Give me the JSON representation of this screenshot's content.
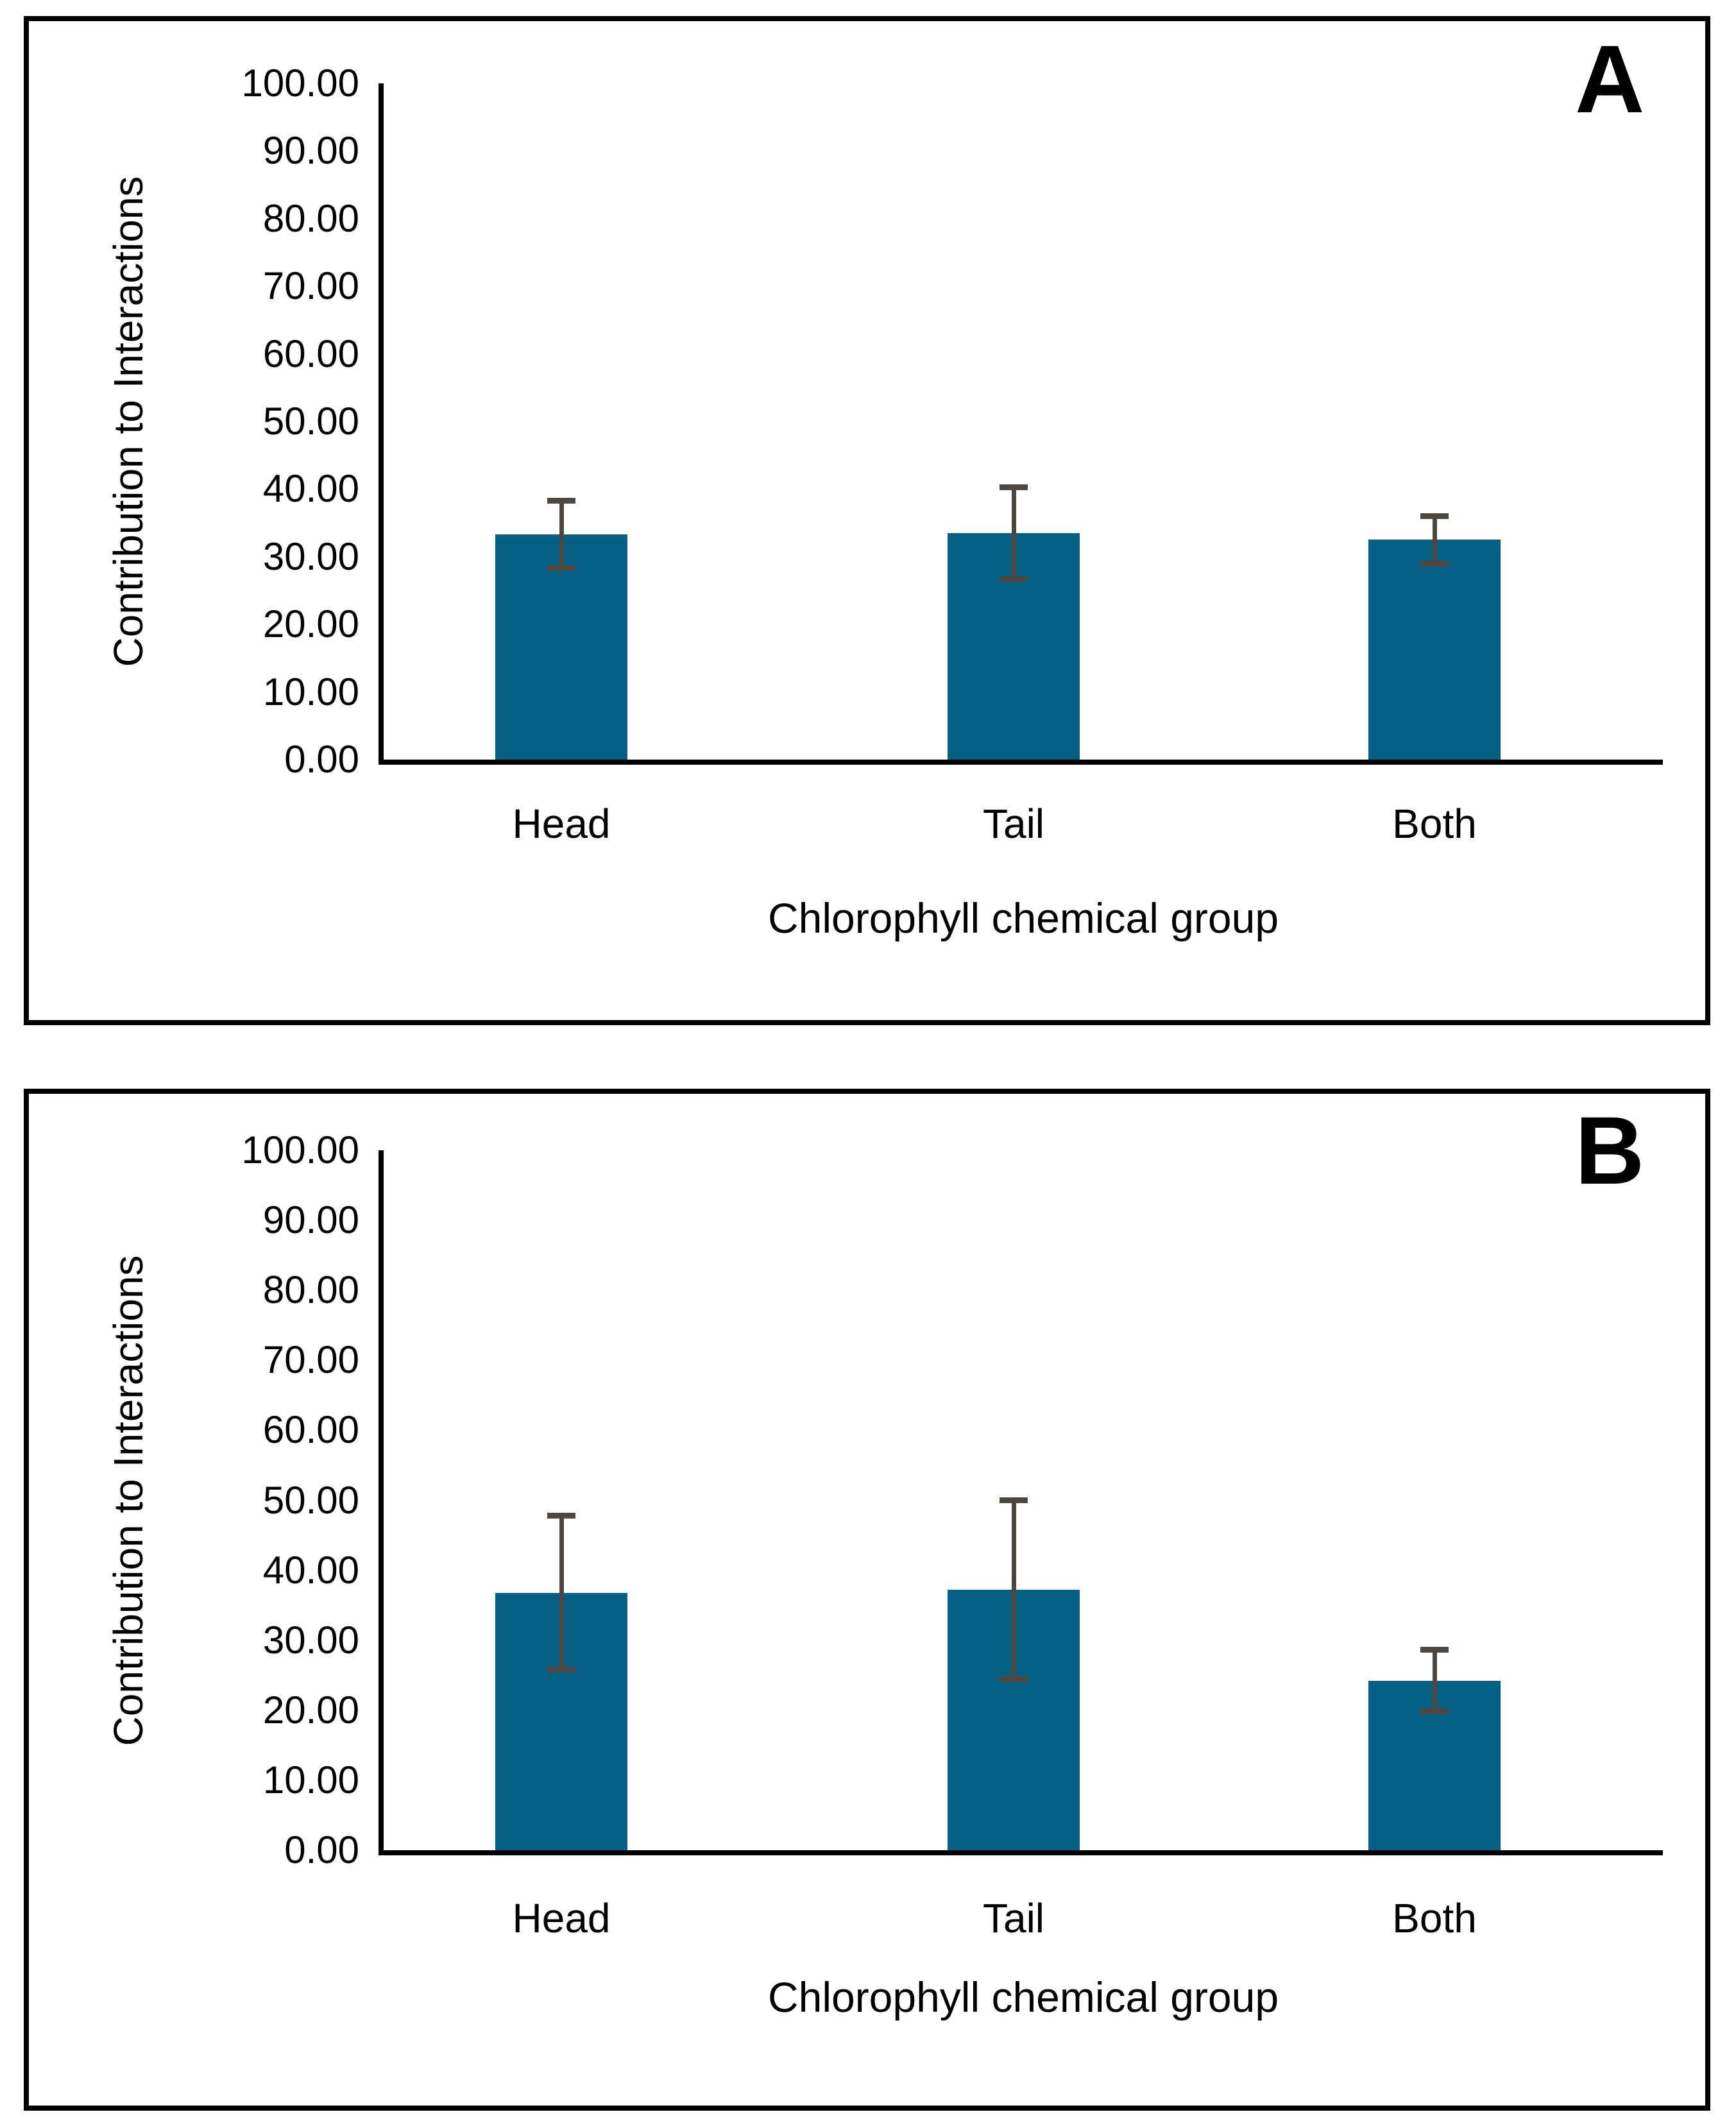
{
  "figure": {
    "panel_labels": [
      "A",
      "B"
    ],
    "background": "#ffffff"
  },
  "colors": {
    "bar_fill": "#065f87",
    "error_bar": "#4d473f",
    "axis_line": "#000000",
    "panel_border": "#000000",
    "text": "#000000",
    "background": "#ffffff"
  },
  "chart_data": [
    {
      "type": "bar",
      "panel_label": "A",
      "categories": [
        "Head",
        "Tail",
        "Both"
      ],
      "values": [
        33.3,
        33.5,
        32.5
      ],
      "error_bars": [
        5.0,
        6.8,
        3.5
      ],
      "xlabel": "Chlorophyll chemical group",
      "ylabel": "Contribution to Interactions",
      "ylim": [
        0,
        100
      ],
      "ytick_step": 10,
      "ytick_labels": [
        "100.00",
        "90.00",
        "80.00",
        "70.00",
        "60.00",
        "50.00",
        "40.00",
        "30.00",
        "20.00",
        "10.00",
        "0.00"
      ],
      "grid": false,
      "legend": null
    },
    {
      "type": "bar",
      "panel_label": "B",
      "categories": [
        "Head",
        "Tail",
        "Both"
      ],
      "values": [
        36.8,
        37.2,
        24.2
      ],
      "error_bars": [
        11.0,
        12.8,
        4.4
      ],
      "xlabel": "Chlorophyll chemical group",
      "ylabel": "Contribution to Interactions",
      "ylim": [
        0,
        100
      ],
      "ytick_step": 10,
      "ytick_labels": [
        "100.00",
        "90.00",
        "80.00",
        "70.00",
        "60.00",
        "50.00",
        "40.00",
        "30.00",
        "20.00",
        "10.00",
        "0.00"
      ],
      "grid": false,
      "legend": null
    }
  ]
}
